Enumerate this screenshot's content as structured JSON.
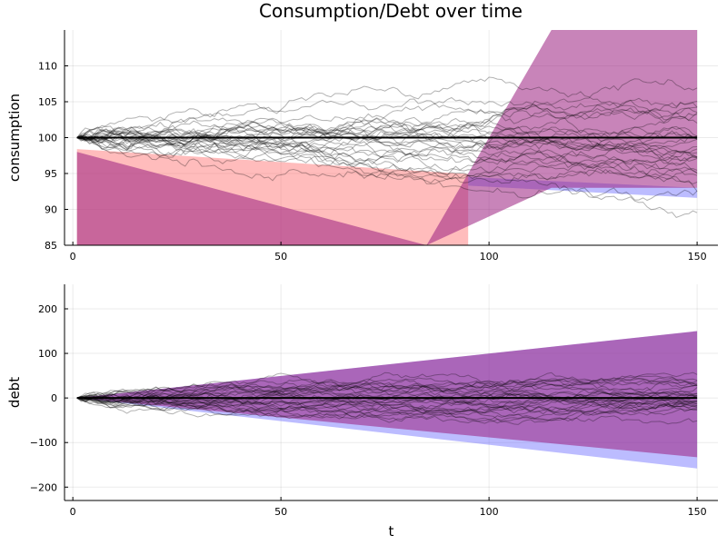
{
  "chart_data": [
    {
      "type": "area",
      "title": "Consumption/Debt over time",
      "xlabel": "",
      "ylabel": "consumption",
      "xlim": [
        -2,
        155
      ],
      "ylim": [
        85,
        115
      ],
      "xticks": [
        0,
        50,
        100,
        150
      ],
      "yticks": [
        85,
        90,
        95,
        100,
        105,
        110
      ],
      "grid": true,
      "legend": "none",
      "bands": [
        {
          "color": "#ff6b6b",
          "opacity": 0.45,
          "x": [
            1,
            150
          ],
          "lower": [
            85,
            85
          ],
          "upper": [
            98.4,
            92.9
          ],
          "x_end": 95
        },
        {
          "color": "#6b6bff",
          "opacity": 0.45,
          "x": [
            95,
            150
          ],
          "lower": [
            93.3,
            91.6
          ],
          "upper": [
            94.5,
            93.0
          ]
        },
        {
          "color": "#9b1f7f",
          "opacity": 0.55,
          "x": [
            1,
            85,
            115,
            150
          ],
          "lower": [
            85,
            85,
            93.0,
            93.0
          ],
          "upper": [
            98.0,
            85.0,
            115,
            115
          ]
        }
      ],
      "mean_line": {
        "color": "#000000",
        "values_x": [
          1,
          150
        ],
        "values_y": [
          100,
          100
        ]
      },
      "paths": {
        "count": 30,
        "start": 100,
        "color": "#000000",
        "opacity": 0.3
      }
    },
    {
      "type": "area",
      "title": "",
      "xlabel": "t",
      "ylabel": "debt",
      "xlim": [
        -2,
        155
      ],
      "ylim": [
        -230,
        255
      ],
      "xticks": [
        0,
        50,
        100,
        150
      ],
      "yticks": [
        -200,
        -100,
        0,
        100,
        200
      ],
      "grid": true,
      "legend": "none",
      "bands": [
        {
          "color": "#6b6bff",
          "opacity": 0.45,
          "x": [
            1,
            150
          ],
          "lower": [
            0,
            -158
          ],
          "upper": [
            0,
            150
          ]
        },
        {
          "color": "#9b1f7f",
          "opacity": 0.55,
          "x": [
            1,
            150
          ],
          "lower": [
            0,
            -133
          ],
          "upper": [
            0,
            150
          ]
        }
      ],
      "mean_line": {
        "color": "#000000",
        "values_x": [
          1,
          150
        ],
        "values_y": [
          0,
          0
        ]
      },
      "paths": {
        "count": 30,
        "start": 0,
        "color": "#000000",
        "opacity": 0.3
      }
    }
  ]
}
